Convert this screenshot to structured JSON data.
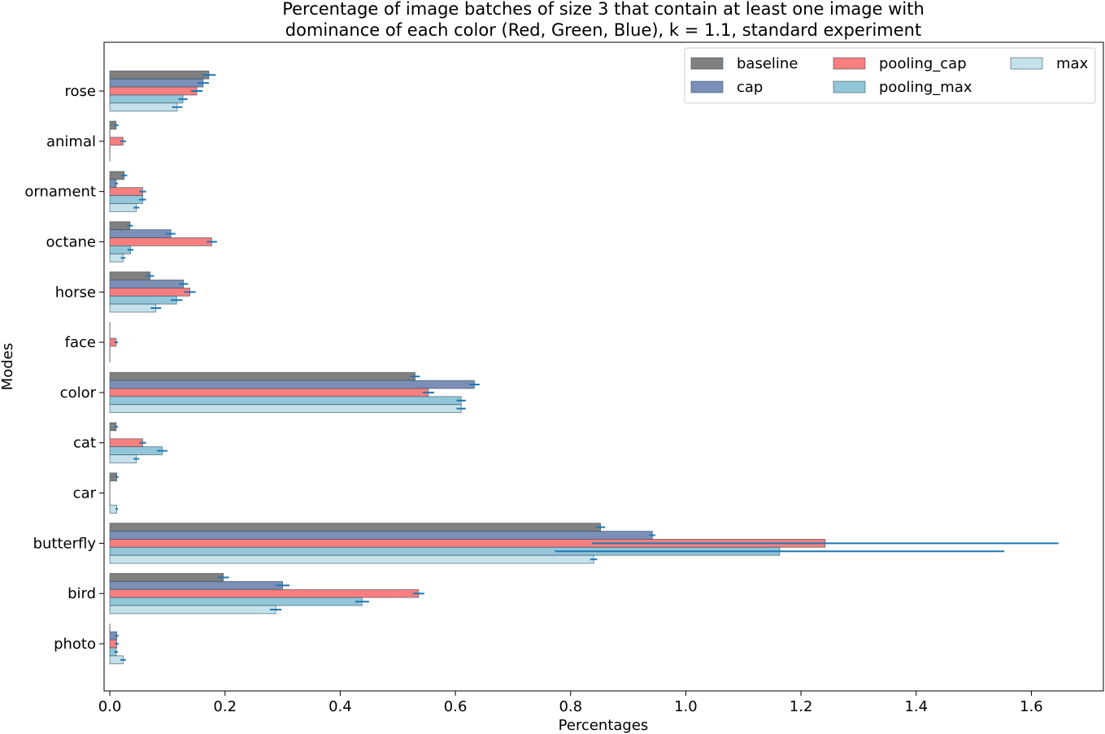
{
  "chart_data": {
    "type": "bar",
    "orientation": "horizontal",
    "title_lines": [
      "Percentage of image batches of size 3 that contain at least one image with",
      "dominance of each color (Red, Green, Blue), k = 1.1, standard experiment"
    ],
    "xlabel": "Percentages",
    "ylabel": "Modes",
    "xlim": [
      -0.01,
      1.725
    ],
    "xticks": [
      "0.0",
      "0.2",
      "0.4",
      "0.6",
      "0.8",
      "1.0",
      "1.2",
      "1.4",
      "1.6"
    ],
    "categories": [
      "rose",
      "animal",
      "ornament",
      "octane",
      "horse",
      "face",
      "color",
      "cat",
      "car",
      "butterfly",
      "bird",
      "photo"
    ],
    "legend_position": "top-right",
    "grid": false,
    "series": [
      {
        "name": "baseline",
        "color": "#808080",
        "values": [
          0.172,
          0.011,
          0.025,
          0.035,
          0.07,
          0.0,
          0.53,
          0.011,
          0.012,
          0.852,
          0.197,
          0.0
        ],
        "errors": [
          0.012,
          0.004,
          0.005,
          0.005,
          0.007,
          0.0,
          0.008,
          0.003,
          0.003,
          0.008,
          0.01,
          0.0
        ]
      },
      {
        "name": "cap",
        "color": "#7b8fb8",
        "values": [
          0.162,
          0.0,
          0.011,
          0.106,
          0.128,
          0.0,
          0.633,
          0.0,
          0.0,
          0.942,
          0.3,
          0.012
        ],
        "errors": [
          0.01,
          0.0,
          0.003,
          0.008,
          0.008,
          0.0,
          0.009,
          0.0,
          0.0,
          0.005,
          0.012,
          0.003
        ]
      },
      {
        "name": "pooling_cap",
        "color": "#f87f7f",
        "values": [
          0.151,
          0.023,
          0.057,
          0.177,
          0.139,
          0.011,
          0.553,
          0.057,
          0.0,
          1.242,
          0.536,
          0.012
        ],
        "errors": [
          0.01,
          0.005,
          0.006,
          0.009,
          0.01,
          0.003,
          0.01,
          0.006,
          0.0,
          0.405,
          0.01,
          0.003
        ]
      },
      {
        "name": "pooling_max",
        "color": "#92c6d8",
        "values": [
          0.127,
          0.0,
          0.057,
          0.036,
          0.116,
          0.0,
          0.61,
          0.091,
          0.0,
          1.163,
          0.438,
          0.011
        ],
        "errors": [
          0.008,
          0.0,
          0.006,
          0.005,
          0.01,
          0.0,
          0.008,
          0.009,
          0.0,
          0.39,
          0.012,
          0.003
        ]
      },
      {
        "name": "max",
        "color": "#c5e2ea",
        "values": [
          0.117,
          0.0,
          0.046,
          0.023,
          0.08,
          0.0,
          0.61,
          0.046,
          0.012,
          0.84,
          0.288,
          0.023
        ],
        "errors": [
          0.009,
          0.0,
          0.005,
          0.004,
          0.009,
          0.0,
          0.008,
          0.005,
          0.002,
          0.006,
          0.01,
          0.005
        ]
      }
    ],
    "legend_layout": [
      {
        "name": "baseline",
        "col": 0,
        "row": 0
      },
      {
        "name": "cap",
        "col": 0,
        "row": 1
      },
      {
        "name": "pooling_cap",
        "col": 1,
        "row": 0
      },
      {
        "name": "pooling_max",
        "col": 1,
        "row": 1
      },
      {
        "name": "max",
        "col": 2,
        "row": 0
      }
    ]
  }
}
